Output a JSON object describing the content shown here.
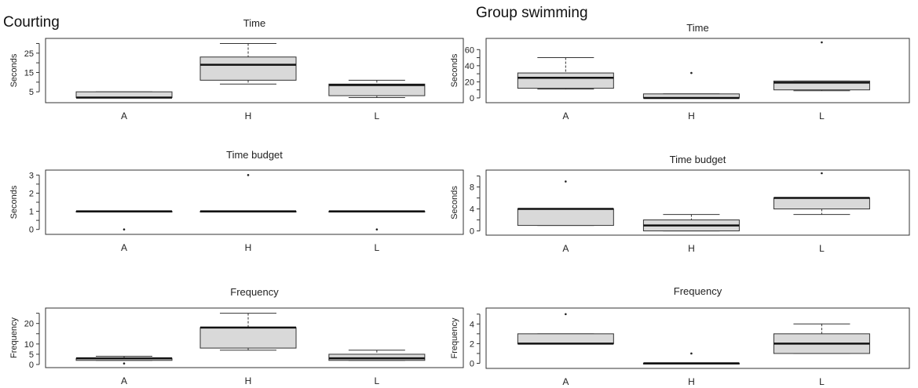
{
  "figure": {
    "left_group_title": "Courting",
    "right_group_title": "Group swimming"
  },
  "chart_data": [
    {
      "type": "boxplot",
      "group": "Courting",
      "title": "Time",
      "ylabel": "Seconds",
      "categories": [
        "A",
        "H",
        "L"
      ],
      "ylim": [
        1,
        31
      ],
      "yticks": [
        5,
        15,
        25
      ],
      "minor_yticks": [
        10,
        20,
        30
      ],
      "boxes": [
        {
          "category": "A",
          "whisker_low": 2,
          "q1": 2,
          "median": 2,
          "q3": 5,
          "whisker_high": 5,
          "outliers": []
        },
        {
          "category": "H",
          "whisker_low": 9,
          "q1": 11,
          "median": 19,
          "q3": 23,
          "whisker_high": 30,
          "outliers": []
        },
        {
          "category": "L",
          "whisker_low": 2,
          "q1": 3,
          "median": 8.5,
          "q3": 9,
          "whisker_high": 11,
          "outliers": []
        }
      ]
    },
    {
      "type": "boxplot",
      "group": "Courting",
      "title": "Time budget",
      "ylabel": "Seconds",
      "categories": [
        "A",
        "H",
        "L"
      ],
      "ylim": [
        -0.1,
        3.1
      ],
      "yticks": [
        0,
        1,
        2,
        3
      ],
      "minor_yticks": [
        0.5,
        1.5,
        2.5
      ],
      "boxes": [
        {
          "category": "A",
          "whisker_low": 1,
          "q1": 1,
          "median": 1,
          "q3": 1,
          "whisker_high": 1,
          "outliers": [
            0
          ]
        },
        {
          "category": "H",
          "whisker_low": 1,
          "q1": 1,
          "median": 1,
          "q3": 1,
          "whisker_high": 1,
          "outliers": [
            3
          ]
        },
        {
          "category": "L",
          "whisker_low": 1,
          "q1": 1,
          "median": 1,
          "q3": 1,
          "whisker_high": 1,
          "outliers": [
            0
          ]
        }
      ]
    },
    {
      "type": "boxplot",
      "group": "Courting",
      "title": "Frequency",
      "ylabel": "Frequency",
      "categories": [
        "A",
        "H",
        "L"
      ],
      "ylim": [
        0,
        26
      ],
      "yticks": [
        0,
        5,
        10,
        20
      ],
      "minor_yticks": [
        15,
        25
      ],
      "boxes": [
        {
          "category": "A",
          "whisker_low": 2,
          "q1": 2,
          "median": 3,
          "q3": 3,
          "whisker_high": 4,
          "outliers": [
            0.5
          ]
        },
        {
          "category": "H",
          "whisker_low": 7,
          "q1": 8,
          "median": 18,
          "q3": 18,
          "whisker_high": 25,
          "outliers": []
        },
        {
          "category": "L",
          "whisker_low": 2,
          "q1": 2,
          "median": 3,
          "q3": 5,
          "whisker_high": 7,
          "outliers": []
        }
      ]
    },
    {
      "type": "boxplot",
      "group": "Group swimming",
      "title": "Time",
      "ylabel": "Seconds",
      "categories": [
        "A",
        "H",
        "L"
      ],
      "ylim": [
        -2,
        70
      ],
      "yticks": [
        0,
        20,
        40,
        60
      ],
      "minor_yticks": [
        10,
        30,
        50
      ],
      "boxes": [
        {
          "category": "A",
          "whisker_low": 11,
          "q1": 12,
          "median": 25,
          "q3": 31,
          "whisker_high": 50,
          "outliers": []
        },
        {
          "category": "H",
          "whisker_low": 0,
          "q1": 0,
          "median": 0,
          "q3": 5,
          "whisker_high": 5,
          "outliers": [
            31
          ]
        },
        {
          "category": "L",
          "whisker_low": 9,
          "q1": 10,
          "median": 19,
          "q3": 21,
          "whisker_high": 21,
          "outliers": [
            69
          ]
        }
      ]
    },
    {
      "type": "boxplot",
      "group": "Group swimming",
      "title": "Time budget",
      "ylabel": "Seconds",
      "categories": [
        "A",
        "H",
        "L"
      ],
      "ylim": [
        -0.2,
        10.5
      ],
      "yticks": [
        0,
        4,
        8
      ],
      "minor_yticks": [
        2,
        6,
        10
      ],
      "boxes": [
        {
          "category": "A",
          "whisker_low": 1,
          "q1": 1,
          "median": 4,
          "q3": 4,
          "whisker_high": 4,
          "outliers": [
            9
          ]
        },
        {
          "category": "H",
          "whisker_low": 0,
          "q1": 0,
          "median": 1,
          "q3": 2,
          "whisker_high": 3,
          "outliers": []
        },
        {
          "category": "L",
          "whisker_low": 3,
          "q1": 4,
          "median": 6,
          "q3": 6,
          "whisker_high": 6,
          "outliers": [
            10.5
          ]
        }
      ]
    },
    {
      "type": "boxplot",
      "group": "Group swimming",
      "title": "Frequency",
      "ylabel": "Frequency",
      "categories": [
        "A",
        "H",
        "L"
      ],
      "ylim": [
        -0.2,
        5.3
      ],
      "yticks": [
        0,
        2,
        4
      ],
      "minor_yticks": [
        1,
        3,
        5
      ],
      "boxes": [
        {
          "category": "A",
          "whisker_low": 2,
          "q1": 2,
          "median": 2,
          "q3": 3,
          "whisker_high": 3,
          "outliers": [
            5
          ]
        },
        {
          "category": "H",
          "whisker_low": 0,
          "q1": 0,
          "median": 0,
          "q3": 0,
          "whisker_high": 0,
          "outliers": [
            1
          ]
        },
        {
          "category": "L",
          "whisker_low": 1,
          "q1": 1,
          "median": 2,
          "q3": 3,
          "whisker_high": 4,
          "outliers": []
        }
      ]
    }
  ]
}
